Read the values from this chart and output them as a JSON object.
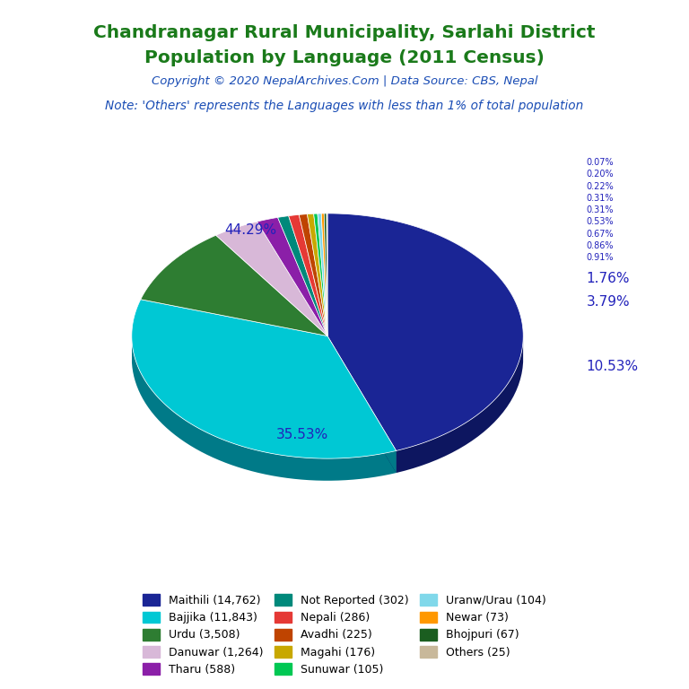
{
  "title_line1": "Chandranagar Rural Municipality, Sarlahi District",
  "title_line2": "Population by Language (2011 Census)",
  "copyright": "Copyright © 2020 NepalArchives.Com | Data Source: CBS, Nepal",
  "note": "Note: 'Others' represents the Languages with less than 1% of total population",
  "title_color": "#1a7a1a",
  "copyright_color": "#1a4db5",
  "note_color": "#1a4db5",
  "label_color": "#2222bb",
  "languages": [
    "Maithili (14,762)",
    "Bajjika (11,843)",
    "Urdu (3,508)",
    "Danuwar (1,264)",
    "Tharu (588)",
    "Not Reported (302)",
    "Nepali (286)",
    "Avadhi (225)",
    "Magahi (176)",
    "Sunuwar (105)",
    "Uranw/Urau (104)",
    "Newar (73)",
    "Bhojpuri (67)",
    "Others (25)"
  ],
  "legend_order": [
    "Maithili (14,762)",
    "Bajjika (11,843)",
    "Urdu (3,508)",
    "Danuwar (1,264)",
    "Tharu (588)",
    "Not Reported (302)",
    "Nepali (286)",
    "Avadhi (225)",
    "Magahi (176)",
    "Sunuwar (105)",
    "Uranw/Urau (104)",
    "Newar (73)",
    "Bhojpuri (67)",
    "Others (25)"
  ],
  "values": [
    14762,
    11843,
    3508,
    1264,
    588,
    302,
    286,
    225,
    176,
    105,
    104,
    73,
    67,
    25
  ],
  "colors": [
    "#1a2595",
    "#00c8d4",
    "#2e7d32",
    "#d8b8d8",
    "#8b1fa8",
    "#00897b",
    "#e53935",
    "#bf4400",
    "#c8a800",
    "#00c853",
    "#80d8ea",
    "#ff9800",
    "#1b5e20",
    "#c8b89a"
  ],
  "shadow_colors": [
    "#0d1660",
    "#007a88",
    "#1a4a1a",
    "#9a7a9a",
    "#4a0a60",
    "#004a42",
    "#8a1a18",
    "#7a2a00",
    "#7a6600",
    "#007a30",
    "#408898",
    "#996000",
    "#0a3010",
    "#807060"
  ],
  "depth": 0.08
}
